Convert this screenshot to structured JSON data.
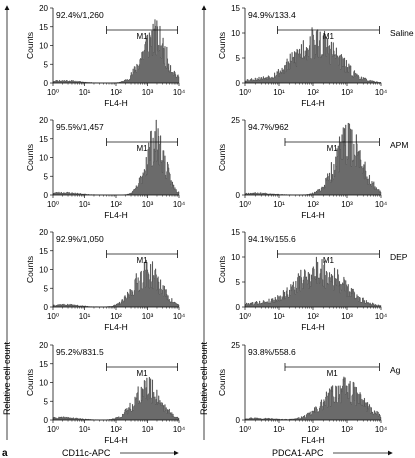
{
  "figure": {
    "panel_letter": "a",
    "left_y_label": "Relative cell count",
    "left_x_label": "CD11c-APC",
    "right_x_label": "PDCA1-APC"
  },
  "chart_data": [
    {
      "type": "histogram",
      "column": "left",
      "row": 1,
      "stat_text": "92.4%/1,260",
      "gate_label": "M1",
      "gate_range": [
        50,
        9000
      ],
      "ylim": [
        0,
        20
      ],
      "yticks": [
        "0",
        "5",
        "10",
        "15",
        "20"
      ],
      "ytick_values": [
        0,
        5,
        10,
        15,
        20
      ],
      "xlim": [
        1,
        10000
      ],
      "x_scale": "log",
      "xticks": [
        "10⁰",
        "10¹",
        "10²",
        "10³",
        "10⁴"
      ],
      "ylabel": "Counts",
      "xlabel": "FL4-H",
      "peak_log": 3.2,
      "spread": 0.38,
      "peak_count": 12,
      "seed": 11
    },
    {
      "type": "histogram",
      "column": "left",
      "row": 2,
      "stat_text": "95.5%/1,457",
      "gate_label": "M1",
      "gate_range": [
        50,
        9000
      ],
      "ylim": [
        0,
        20
      ],
      "yticks": [
        "0",
        "5",
        "10",
        "15",
        "20"
      ],
      "ytick_values": [
        0,
        5,
        10,
        15,
        20
      ],
      "xlim": [
        1,
        10000
      ],
      "x_scale": "log",
      "xticks": [
        "10⁰",
        "10¹",
        "10²",
        "10³",
        "10⁴"
      ],
      "ylabel": "Counts",
      "xlabel": "FL4-H",
      "peak_log": 3.25,
      "spread": 0.3,
      "peak_count": 14,
      "seed": 23
    },
    {
      "type": "histogram",
      "column": "left",
      "row": 3,
      "stat_text": "92.9%/1,050",
      "gate_label": "M1",
      "gate_range": [
        50,
        9000
      ],
      "ylim": [
        0,
        20
      ],
      "yticks": [
        "0",
        "5",
        "10",
        "15",
        "20"
      ],
      "ytick_values": [
        0,
        5,
        10,
        15,
        20
      ],
      "xlim": [
        1,
        10000
      ],
      "x_scale": "log",
      "xticks": [
        "10⁰",
        "10¹",
        "10²",
        "10³",
        "10⁴"
      ],
      "ylabel": "Counts",
      "xlabel": "FL4-H",
      "peak_log": 3.0,
      "spread": 0.42,
      "peak_count": 9,
      "seed": 37
    },
    {
      "type": "histogram",
      "column": "left",
      "row": 4,
      "stat_text": "95.2%/831.5",
      "gate_label": "M1",
      "gate_range": [
        50,
        9000
      ],
      "ylim": [
        0,
        20
      ],
      "yticks": [
        "0",
        "5",
        "10",
        "15",
        "20"
      ],
      "ytick_values": [
        0,
        5,
        10,
        15,
        20
      ],
      "xlim": [
        1,
        10000
      ],
      "x_scale": "log",
      "xticks": [
        "10⁰",
        "10¹",
        "10²",
        "10³",
        "10⁴"
      ],
      "ylabel": "Counts",
      "xlabel": "FL4-H",
      "peak_log": 3.0,
      "spread": 0.42,
      "peak_count": 8,
      "seed": 41
    },
    {
      "type": "histogram",
      "column": "right",
      "row": 1,
      "stat_text": "94.9%/133.4",
      "gate_label": "M1",
      "gate_range": [
        9,
        9000
      ],
      "ylim": [
        0,
        15
      ],
      "yticks": [
        "0",
        "5",
        "10",
        "15"
      ],
      "ytick_values": [
        0,
        5,
        10,
        15
      ],
      "xlim": [
        1,
        10000
      ],
      "x_scale": "log",
      "xticks": [
        "10⁰",
        "10¹",
        "10²",
        "10³",
        "10⁴"
      ],
      "ylabel": "Counts",
      "xlabel": "FL4-H",
      "sample": "Saline",
      "peak_log": 2.1,
      "spread": 0.65,
      "peak_count": 8,
      "seed": 53
    },
    {
      "type": "histogram",
      "column": "right",
      "row": 2,
      "stat_text": "94.7%/962",
      "gate_label": "M1",
      "gate_range": [
        15,
        9000
      ],
      "ylim": [
        0,
        25
      ],
      "yticks": [
        "0",
        "25"
      ],
      "ytick_values": [
        0,
        25
      ],
      "xlim": [
        1,
        10000
      ],
      "x_scale": "log",
      "xticks": [
        "10⁰",
        "10¹",
        "10²",
        "10³",
        "10⁴"
      ],
      "ylabel": "Counts",
      "xlabel": "FL4-H",
      "sample": "APM",
      "peak_log": 3.05,
      "spread": 0.4,
      "peak_count": 17,
      "seed": 67
    },
    {
      "type": "histogram",
      "column": "right",
      "row": 3,
      "stat_text": "94.1%/155.6",
      "gate_label": "M1",
      "gate_range": [
        9,
        9000
      ],
      "ylim": [
        0,
        15
      ],
      "yticks": [
        "0",
        "5",
        "10",
        "15"
      ],
      "ytick_values": [
        0,
        5,
        10,
        15
      ],
      "xlim": [
        1,
        10000
      ],
      "x_scale": "log",
      "xticks": [
        "10⁰",
        "10¹",
        "10²",
        "10³",
        "10⁴"
      ],
      "ylabel": "Counts",
      "xlabel": "FL4-H",
      "sample": "DEP",
      "peak_log": 2.2,
      "spread": 0.7,
      "peak_count": 7,
      "seed": 79
    },
    {
      "type": "histogram",
      "column": "right",
      "row": 4,
      "stat_text": "93.8%/558.6",
      "gate_label": "M1",
      "gate_range": [
        15,
        9000
      ],
      "ylim": [
        0,
        25
      ],
      "yticks": [
        "0",
        "25"
      ],
      "ytick_values": [
        0,
        25
      ],
      "xlim": [
        1,
        10000
      ],
      "x_scale": "log",
      "xticks": [
        "10⁰",
        "10¹",
        "10²",
        "10³",
        "10⁴"
      ],
      "ylabel": "Counts",
      "xlabel": "FL4-H",
      "sample": "Ag",
      "peak_log": 2.9,
      "spread": 0.55,
      "peak_count": 10,
      "seed": 97
    }
  ]
}
